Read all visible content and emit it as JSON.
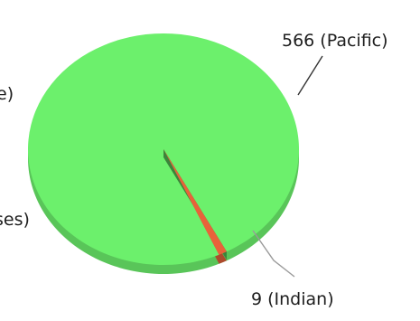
{
  "chart_data": {
    "type": "pie",
    "style": "3d",
    "slices": [
      {
        "label": "9 (Indian)",
        "value": 9,
        "color": "#e8623a"
      },
      {
        "label": "566 (Pacific)",
        "value": 566,
        "color": "#6cf06c"
      },
      {
        "label": "e)",
        "value": null,
        "color": "#6cf06c"
      },
      {
        "label": "ses)",
        "value": null,
        "color": "#6cf06c"
      }
    ]
  }
}
